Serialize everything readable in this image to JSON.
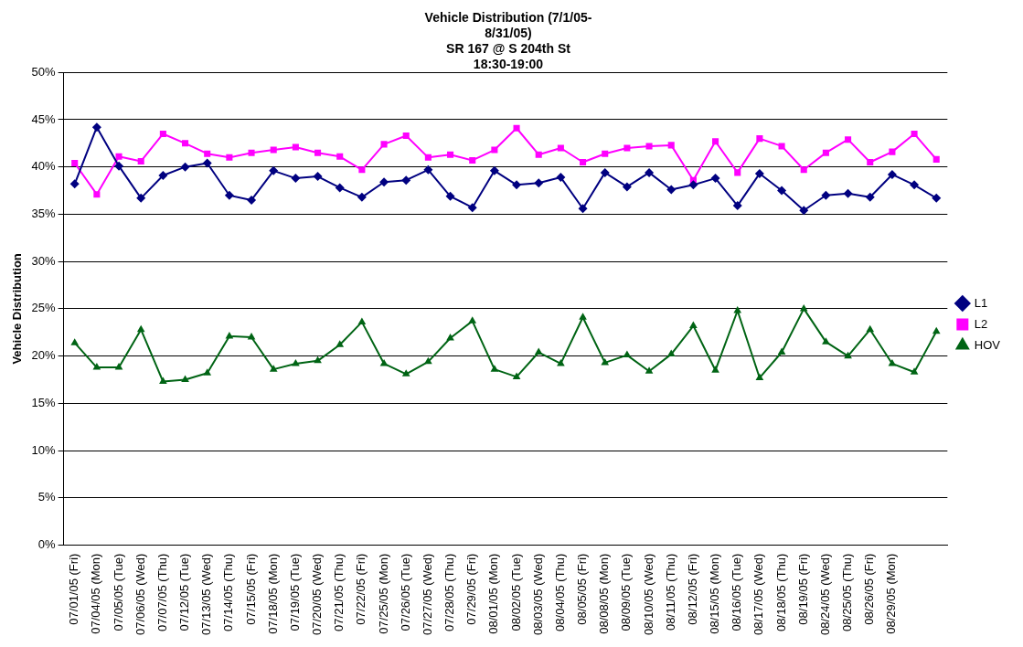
{
  "chart_data": {
    "type": "line",
    "title": "Vehicle Distribution (7/1/05-\n8/31/05)\nSR 167 @ S 204th St\n18:30-19:00",
    "ylabel": "Vehicle Distribution",
    "categories": [
      "07/01/05 (Fri)",
      "07/04/05 (Mon)",
      "07/05/05 (Tue)",
      "07/06/05 (Wed)",
      "07/07/05 (Thu)",
      "07/12/05 (Tue)",
      "07/13/05 (Wed)",
      "07/14/05 (Thu)",
      "07/15/05 (Fri)",
      "07/18/05 (Mon)",
      "07/19/05 (Tue)",
      "07/20/05 (Wed)",
      "07/21/05 (Thu)",
      "07/22/05 (Fri)",
      "07/25/05 (Mon)",
      "07/26/05 (Tue)",
      "07/27/05 (Wed)",
      "07/28/05 (Thu)",
      "07/29/05 (Fri)",
      "08/01/05 (Mon)",
      "08/02/05 (Tue)",
      "08/03/05 (Wed)",
      "08/04/05 (Thu)",
      "08/05/05 (Fri)",
      "08/08/05 (Mon)",
      "08/09/05 (Tue)",
      "08/10/05 (Wed)",
      "08/11/05 (Thu)",
      "08/12/05 (Fri)",
      "08/15/05 (Mon)",
      "08/16/05 (Tue)",
      "08/17/05 (Wed)",
      "08/18/05 (Thu)",
      "08/19/05 (Fri)",
      "08/24/05 (Wed)",
      "08/25/05 (Thu)",
      "08/26/05 (Fri)",
      "08/29/05 (Mon)",
      null,
      null
    ],
    "series": [
      {
        "name": "L1",
        "color": "#000080",
        "marker": "diamond",
        "values": [
          38.2,
          44.2,
          40.1,
          36.7,
          39.1,
          40.0,
          40.4,
          37.0,
          36.5,
          39.6,
          38.8,
          39.0,
          37.8,
          36.8,
          38.4,
          38.6,
          39.7,
          36.9,
          35.7,
          39.6,
          38.1,
          38.3,
          38.9,
          35.6,
          39.4,
          37.9,
          39.4,
          37.6,
          38.1,
          38.8,
          35.9,
          39.3,
          37.5,
          35.4,
          37.0,
          37.2,
          36.8,
          39.2,
          38.1,
          36.7
        ]
      },
      {
        "name": "L2",
        "color": "#ff00ff",
        "marker": "square",
        "values": [
          40.4,
          37.1,
          41.1,
          40.6,
          43.5,
          42.5,
          41.4,
          41.0,
          41.5,
          41.8,
          42.1,
          41.5,
          41.1,
          39.7,
          42.4,
          43.3,
          41.0,
          41.3,
          40.7,
          41.8,
          44.1,
          41.3,
          42.0,
          40.5,
          41.4,
          42.0,
          42.2,
          42.3,
          38.6,
          42.7,
          39.4,
          43.0,
          42.2,
          39.7,
          41.5,
          42.9,
          40.5,
          41.6,
          43.5,
          40.8
        ]
      },
      {
        "name": "HOV",
        "color": "#006414",
        "marker": "triangle",
        "values": [
          21.4,
          18.8,
          18.8,
          22.8,
          17.3,
          17.5,
          18.2,
          22.1,
          22.0,
          18.6,
          19.2,
          19.5,
          21.2,
          23.6,
          19.2,
          18.1,
          19.4,
          21.9,
          23.7,
          18.6,
          17.8,
          20.4,
          19.2,
          24.1,
          19.3,
          20.1,
          18.4,
          20.2,
          23.2,
          18.5,
          24.8,
          17.7,
          20.4,
          25.0,
          21.5,
          20.0,
          22.8,
          19.2,
          18.3,
          22.6
        ]
      }
    ],
    "ylim": [
      0,
      50
    ],
    "yticks": [
      {
        "value": 0,
        "label": "0%"
      },
      {
        "value": 5,
        "label": "5%"
      },
      {
        "value": 10,
        "label": "10%"
      },
      {
        "value": 15,
        "label": "15%"
      },
      {
        "value": 20,
        "label": "20%"
      },
      {
        "value": 25,
        "label": "25%"
      },
      {
        "value": 30,
        "label": "30%"
      },
      {
        "value": 35,
        "label": "35%"
      },
      {
        "value": 40,
        "label": "40%"
      },
      {
        "value": 45,
        "label": "45%"
      },
      {
        "value": 50,
        "label": "50%"
      }
    ],
    "grid": "y",
    "legend": "right",
    "line_style": "solid"
  }
}
